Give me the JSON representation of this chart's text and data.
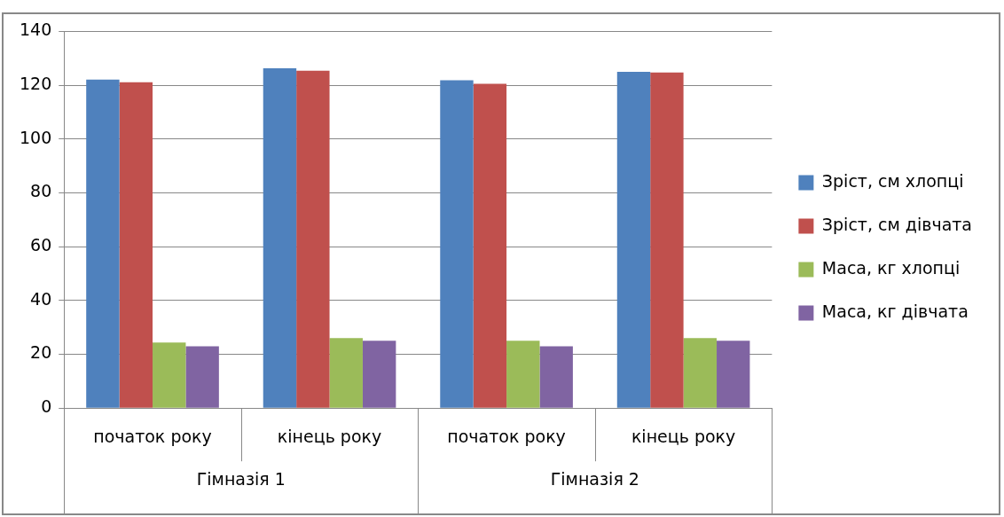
{
  "chart_data": {
    "type": "bar",
    "categories": [
      "початок року",
      "кінець року",
      "початок року",
      "кінець року"
    ],
    "series": [
      {
        "name": "Зріст, см хлопці",
        "color": "#4f81bd",
        "values": [
          122.1,
          126.3,
          121.8,
          125
        ]
      },
      {
        "name": "Зріст, см дівчата",
        "color": "#c0504d",
        "values": [
          121.1,
          125.4,
          120.5,
          124.7
        ]
      },
      {
        "name": "Маса, кг хлопці",
        "color": "#9bbb59",
        "values": [
          24.4,
          26,
          25,
          26
        ]
      },
      {
        "name": "Маса, кг дівчата",
        "color": "#8064a2",
        "values": [
          23,
          25,
          23,
          25
        ]
      }
    ],
    "ylim": [
      0,
      140
    ],
    "yticks": [
      0,
      20,
      40,
      60,
      80,
      100,
      120,
      140
    ],
    "grid": "y",
    "legend": "right",
    "annotations": [
      "Гімназія 1",
      "Гімназія 2"
    ]
  }
}
